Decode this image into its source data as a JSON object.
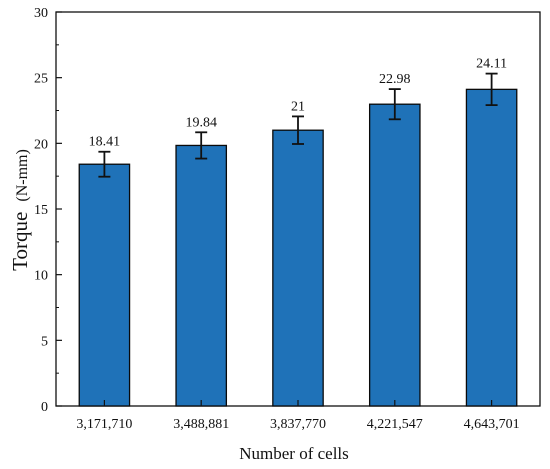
{
  "chart_data": {
    "type": "bar",
    "categories": [
      "3,171,710",
      "3,488,881",
      "3,837,770",
      "4,221,547",
      "4,643,701"
    ],
    "values": [
      18.41,
      19.84,
      21,
      22.98,
      24.11
    ],
    "value_labels": [
      "18.41",
      "19.84",
      "21",
      "22.98",
      "24.11"
    ],
    "errors": [
      0.95,
      1.0,
      1.05,
      1.15,
      1.2
    ],
    "xlabel": "Number of cells",
    "ylabel_main": "Torque",
    "ylabel_unit": "(N-mm)",
    "ylim": [
      0,
      30
    ],
    "yticks": [
      0,
      5,
      10,
      15,
      20,
      25,
      30
    ],
    "bar_color": "#1f72b8",
    "bar_edge_color": "#0a0a0a",
    "legend": "none",
    "grid": false
  }
}
